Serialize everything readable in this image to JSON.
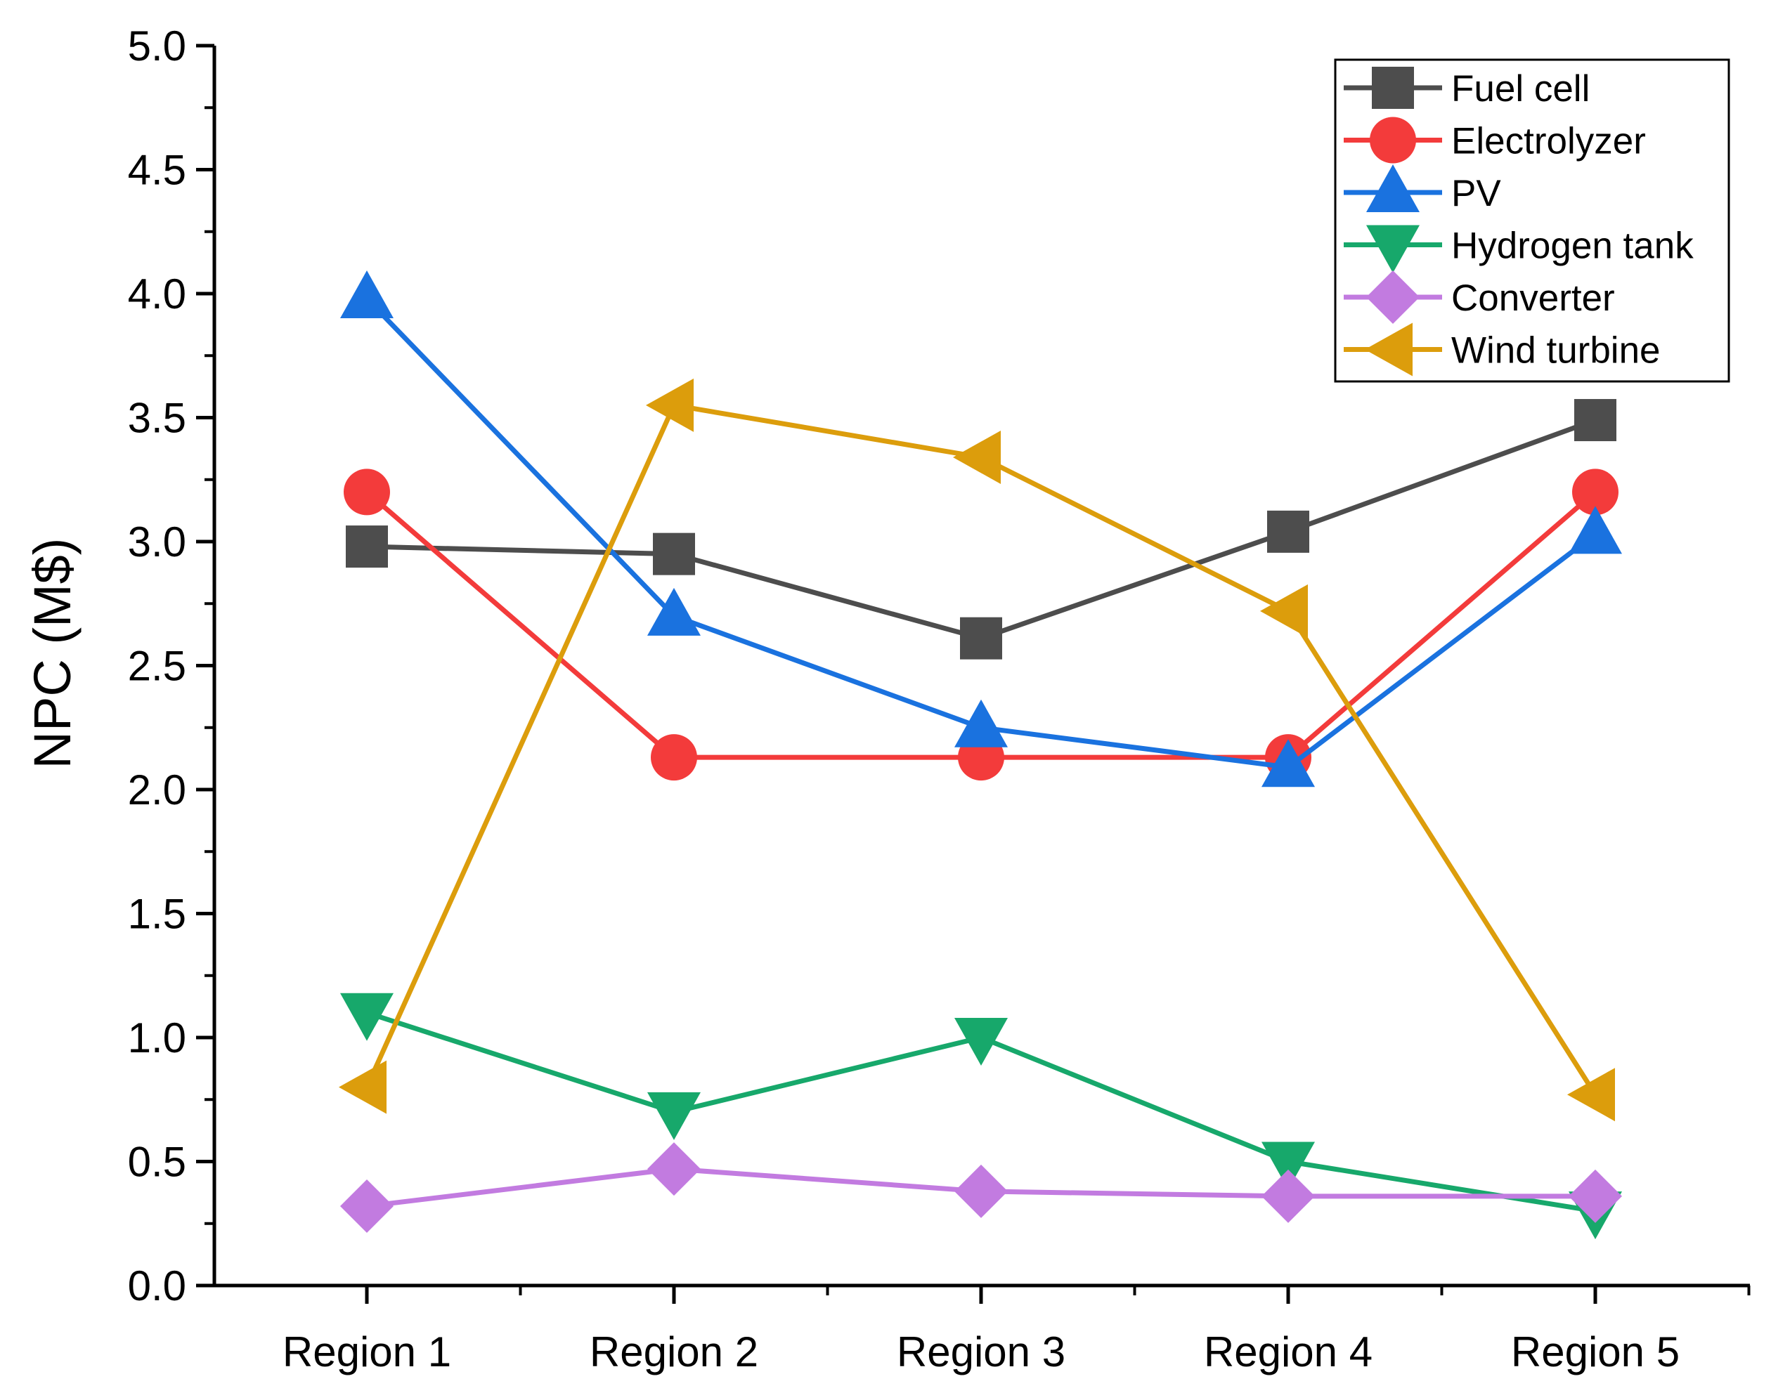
{
  "chart_data": {
    "type": "line",
    "title": "",
    "xlabel": "",
    "ylabel": "NPC (M$)",
    "categories": [
      "Region 1",
      "Region 2",
      "Region 3",
      "Region 4",
      "Region 5"
    ],
    "ylim": [
      0,
      5
    ],
    "yticks": [
      "0.0",
      "0.5",
      "1.0",
      "1.5",
      "2.0",
      "2.5",
      "3.0",
      "3.5",
      "4.0",
      "4.5",
      "5.0"
    ],
    "grid": false,
    "legend_position": "top-right",
    "series": [
      {
        "name": "Fuel cell",
        "color": "#4d4d4d",
        "marker": "square",
        "values": [
          2.98,
          2.95,
          2.61,
          3.04,
          3.49
        ]
      },
      {
        "name": "Electrolyzer",
        "color": "#f33b3b",
        "marker": "circle",
        "values": [
          3.2,
          2.13,
          2.13,
          2.13,
          3.2
        ]
      },
      {
        "name": "PV",
        "color": "#1a72df",
        "marker": "triangle-up",
        "values": [
          3.98,
          2.7,
          2.25,
          2.09,
          3.03
        ]
      },
      {
        "name": "Hydrogen tank",
        "color": "#17a86b",
        "marker": "triangle-down",
        "values": [
          1.1,
          0.7,
          1.0,
          0.5,
          0.3
        ]
      },
      {
        "name": "Converter",
        "color": "#c27be0",
        "marker": "diamond",
        "values": [
          0.32,
          0.47,
          0.38,
          0.36,
          0.36
        ]
      },
      {
        "name": "Wind turbine",
        "color": "#dc9d0c",
        "marker": "triangle-left",
        "values": [
          0.8,
          3.55,
          3.34,
          2.72,
          0.77
        ]
      }
    ]
  }
}
